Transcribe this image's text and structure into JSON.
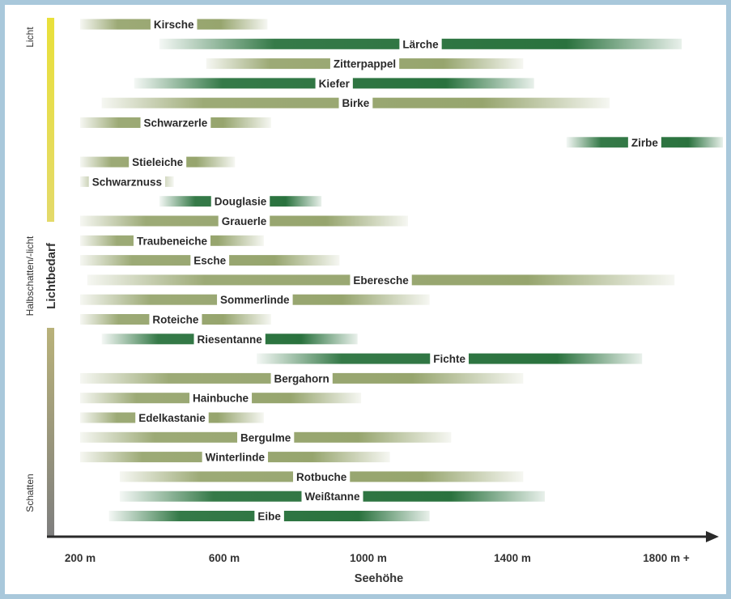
{
  "chart_data": {
    "type": "range-bar",
    "xlabel": "Seehöhe",
    "ylabel": "Lichtbedarf",
    "x_ticks": [
      {
        "value": 200,
        "label": "200 m"
      },
      {
        "value": 600,
        "label": "600 m"
      },
      {
        "value": 1000,
        "label": "1000 m"
      },
      {
        "value": 1400,
        "label": "1400 m"
      },
      {
        "value": 1800,
        "label": "1800 m +"
      }
    ],
    "xlim": [
      0,
      1880
    ],
    "y_scale_labels": {
      "top": "Licht",
      "middle": "Halbschatten/-licht",
      "bottom": "Schatten"
    },
    "colors": {
      "conifer": "#1f6b34",
      "broadleaf": "#8b9b5e",
      "light": "#e9e03a",
      "shade": "#7e7e7e",
      "axis": "#2a2a2a"
    },
    "bars": [
      {
        "label": "Kirsche",
        "start": 200,
        "end": 720,
        "kind": "broadleaf"
      },
      {
        "label": "Lärche",
        "start": 420,
        "end": 1870,
        "kind": "conifer"
      },
      {
        "label": "Zitterpappel",
        "start": 550,
        "end": 1430,
        "kind": "broadleaf"
      },
      {
        "label": "Kiefer",
        "start": 350,
        "end": 1460,
        "kind": "conifer"
      },
      {
        "label": "Birke",
        "start": 260,
        "end": 1670,
        "kind": "broadleaf"
      },
      {
        "label": "Schwarzerle",
        "start": 200,
        "end": 730,
        "kind": "broadleaf"
      },
      {
        "label": "Zirbe",
        "start": 1550,
        "end": 1990,
        "kind": "conifer"
      },
      {
        "label": "Stieleiche",
        "start": 200,
        "end": 630,
        "kind": "broadleaf"
      },
      {
        "label": "Schwarznuss",
        "start": 200,
        "end": 460,
        "kind": "broadleaf"
      },
      {
        "label": "Douglasie",
        "start": 420,
        "end": 870,
        "kind": "conifer"
      },
      {
        "label": "Grauerle",
        "start": 200,
        "end": 1110,
        "kind": "broadleaf"
      },
      {
        "label": "Traubeneiche",
        "start": 200,
        "end": 710,
        "kind": "broadleaf"
      },
      {
        "label": "Esche",
        "start": 200,
        "end": 920,
        "kind": "broadleaf"
      },
      {
        "label": "Eberesche",
        "start": 220,
        "end": 1850,
        "kind": "broadleaf"
      },
      {
        "label": "Sommerlinde",
        "start": 200,
        "end": 1170,
        "kind": "broadleaf"
      },
      {
        "label": "Roteiche",
        "start": 200,
        "end": 730,
        "kind": "broadleaf"
      },
      {
        "label": "Riesentanne",
        "start": 260,
        "end": 970,
        "kind": "conifer"
      },
      {
        "label": "Fichte",
        "start": 690,
        "end": 1760,
        "kind": "conifer"
      },
      {
        "label": "Bergahorn",
        "start": 200,
        "end": 1430,
        "kind": "broadleaf"
      },
      {
        "label": "Hainbuche",
        "start": 200,
        "end": 980,
        "kind": "broadleaf"
      },
      {
        "label": "Edelkastanie",
        "start": 200,
        "end": 710,
        "kind": "broadleaf"
      },
      {
        "label": "Bergulme",
        "start": 200,
        "end": 1230,
        "kind": "broadleaf"
      },
      {
        "label": "Winterlinde",
        "start": 200,
        "end": 1060,
        "kind": "broadleaf"
      },
      {
        "label": "Rotbuche",
        "start": 310,
        "end": 1430,
        "kind": "broadleaf"
      },
      {
        "label": "Weißtanne",
        "start": 310,
        "end": 1490,
        "kind": "conifer"
      },
      {
        "label": "Eibe",
        "start": 280,
        "end": 1170,
        "kind": "conifer"
      }
    ]
  }
}
